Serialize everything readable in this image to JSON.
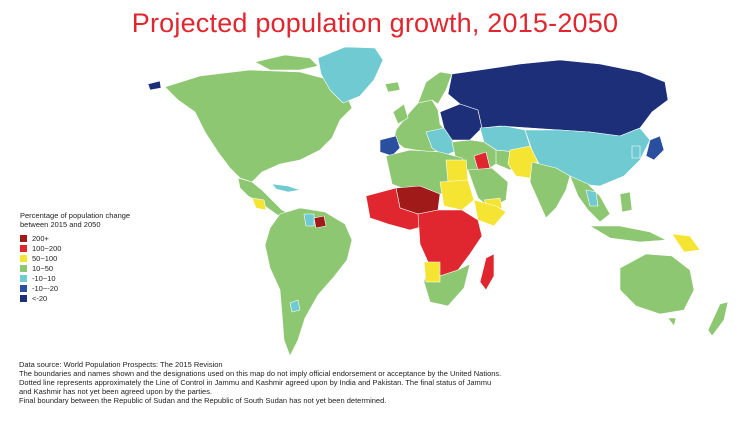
{
  "title": "Projected population growth, 2015-2050",
  "legend": {
    "title_line1": "Percentage of population change",
    "title_line2": "between 2015 and 2050",
    "items": [
      {
        "label": "200+",
        "color": "#a01a1a"
      },
      {
        "label": "100~200",
        "color": "#e0262e"
      },
      {
        "label": "50~100",
        "color": "#f5e532"
      },
      {
        "label": "10~50",
        "color": "#8ec772"
      },
      {
        "label": "-10~10",
        "color": "#6fcad2"
      },
      {
        "label": "-10~-20",
        "color": "#2a4f9e"
      },
      {
        "label": "<-20",
        "color": "#1d2f78"
      }
    ]
  },
  "notes": [
    "Data source: World Population Prospects: The 2015 Revision",
    "The boundaries and names shown and the designations used on this map do not imply official endorsement or acceptance by the United Nations.",
    "Dotted line represents approximately the Line of Control in Jammu and Kashmir agreed upon by India and Pakistan. The final status of Jammu",
    "and Kashmir has not yet been agreed upon by the parties.",
    "Final boundary between the Republic of Sudan and the Republic of South Sudan has not yet been determined."
  ],
  "colors": {
    "title": "#e0262e",
    "land_green": "#8ec772",
    "land_teal": "#6fcad2",
    "land_navy": "#1d2f78",
    "land_blue": "#2a4f9e",
    "land_yellow": "#f5e532",
    "land_red": "#e0262e",
    "land_darkred": "#a01a1a"
  }
}
